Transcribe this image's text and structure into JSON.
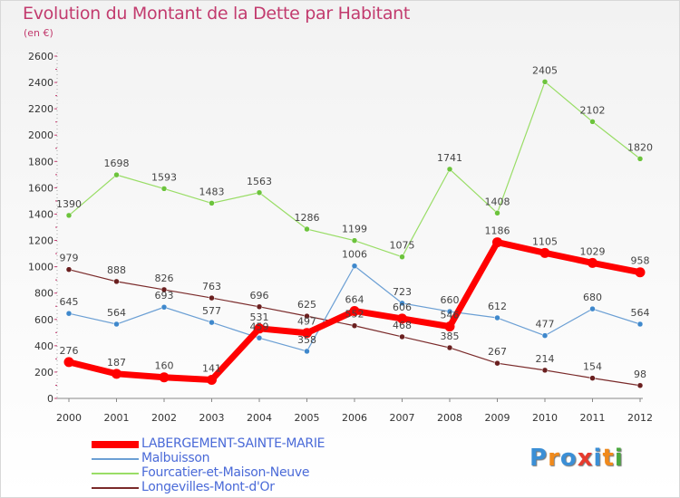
{
  "title": "Evolution du Montant de la Dette par Habitant",
  "subtitle": "(en €)",
  "chart_data": {
    "type": "line",
    "title": "Evolution du Montant de la Dette par Habitant",
    "subtitle": "(en €)",
    "x": [
      "2000",
      "2001",
      "2002",
      "2003",
      "2004",
      "2005",
      "2006",
      "2007",
      "2008",
      "2009",
      "2010",
      "2011",
      "2012"
    ],
    "yticks": [
      "0",
      "200",
      "400",
      "600",
      "800",
      "1000",
      "1200",
      "1400",
      "1600",
      "1800",
      "2000",
      "2200",
      "2400",
      "2600"
    ],
    "ylim": [
      0,
      2600
    ],
    "grid": false,
    "legend_position": "bottom-left",
    "series": [
      {
        "name": "LABERGEMENT-SAINTE-MARIE",
        "color": "#ff0000",
        "values": [
          276,
          187,
          160,
          141,
          531,
          497,
          664,
          606,
          546,
          1186,
          1105,
          1029,
          958
        ],
        "labels": [
          "276",
          "187",
          "160",
          "141",
          "531",
          "497",
          "664",
          "606",
          "546",
          "1186",
          "1105",
          "1029",
          "958"
        ]
      },
      {
        "name": "Malbuisson",
        "color": "#6b9fd4",
        "values": [
          645,
          564,
          693,
          577,
          459,
          358,
          1006,
          723,
          660,
          612,
          477,
          680,
          564
        ],
        "labels": [
          "645",
          "564",
          "693",
          "577",
          "459",
          "358",
          "1006",
          "723",
          "660",
          "612",
          "477",
          "680",
          "564"
        ]
      },
      {
        "name": "Fourcatier-et-Maison-Neuve",
        "color": "#99dd66",
        "values": [
          1390,
          1698,
          1593,
          1483,
          1563,
          1286,
          1199,
          1075,
          1741,
          1408,
          2405,
          2102,
          1820
        ],
        "labels": [
          "1390",
          "1698",
          "1593",
          "1483",
          "1563",
          "1286",
          "1199",
          "1075",
          "1741",
          "1408",
          "2405",
          "2102",
          "1820"
        ]
      },
      {
        "name": "Longevilles-Mont-d'Or",
        "color": "#7a2a2a",
        "values": [
          979,
          888,
          826,
          763,
          696,
          625,
          552,
          468,
          385,
          267,
          214,
          154,
          98
        ],
        "labels": [
          "979",
          "888",
          "826",
          "763",
          "696",
          "625",
          "552",
          "468",
          "385",
          "267",
          "214",
          "154",
          "98"
        ]
      }
    ]
  },
  "logo": {
    "text": "Proxiti",
    "letters": [
      "P",
      "r",
      "o",
      "x",
      "i",
      "t",
      "i"
    ],
    "colors": [
      "#3b8fd6",
      "#f08a1c",
      "#3b8fd6",
      "#e63b2e",
      "#3b8fd6",
      "#f08a1c",
      "#4aa83e"
    ]
  }
}
